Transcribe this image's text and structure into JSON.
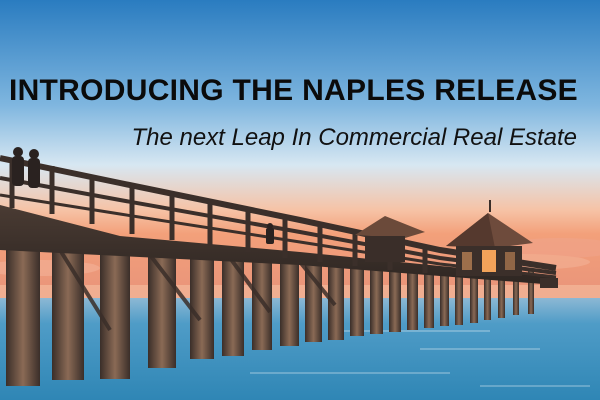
{
  "banner": {
    "headline": "INTRODUCING THE NAPLES RELEASE",
    "subheadline": "The next Leap In Commercial Real Estate"
  },
  "photo": {
    "subject": "pier-at-sunset",
    "colors": {
      "sky_top": "#2a7cc0",
      "sky_glow": "#f3a07a",
      "sea": "#3d93bd",
      "wood": "#3b2f2a"
    }
  }
}
